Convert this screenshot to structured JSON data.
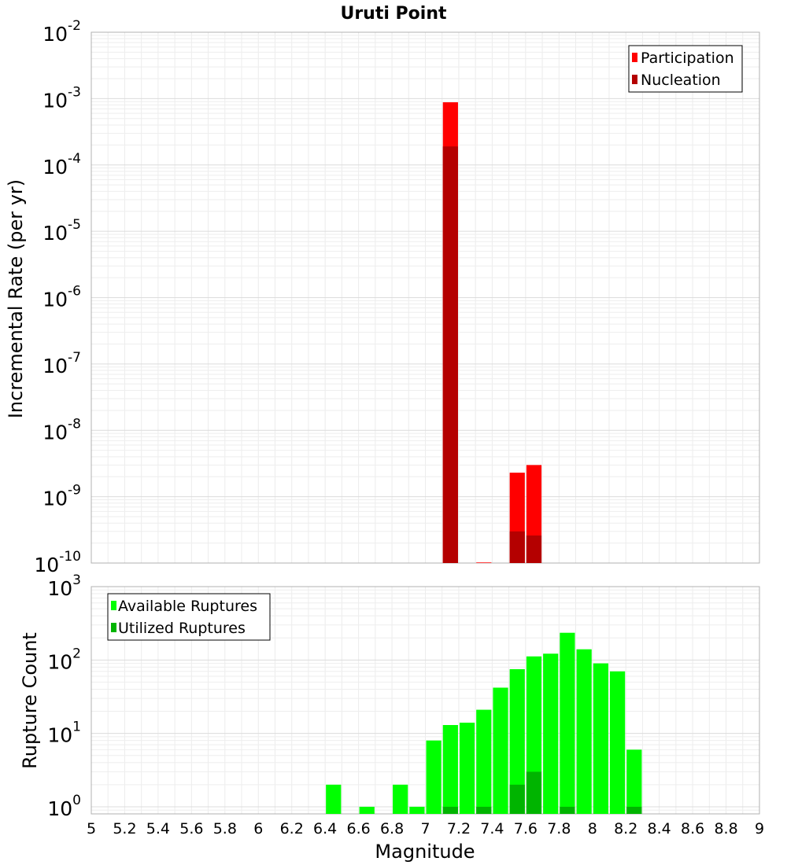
{
  "chart_data": [
    {
      "type": "bar",
      "title": "Uruti Point",
      "ylabel": "Incremental Rate (per yr)",
      "xlabel": "",
      "y_scale": "log",
      "ylim": [
        1e-10,
        0.01
      ],
      "y_ticks": [
        {
          "base": "10",
          "exp": "-10",
          "value": 1e-10
        },
        {
          "base": "10",
          "exp": "-9",
          "value": 1e-09
        },
        {
          "base": "10",
          "exp": "-8",
          "value": 1e-08
        },
        {
          "base": "10",
          "exp": "-7",
          "value": 1e-07
        },
        {
          "base": "10",
          "exp": "-6",
          "value": 1e-06
        },
        {
          "base": "10",
          "exp": "-5",
          "value": 1e-05
        },
        {
          "base": "10",
          "exp": "-4",
          "value": 0.0001
        },
        {
          "base": "10",
          "exp": "-3",
          "value": 0.001
        },
        {
          "base": "10",
          "exp": "-2",
          "value": 0.01
        }
      ],
      "xlim": [
        5,
        9
      ],
      "bin_width": 0.1,
      "grid": true,
      "legend_position": "top-right",
      "series": [
        {
          "name": "Participation",
          "color": "#ff0000",
          "x": [
            7.15,
            7.35,
            7.55,
            7.65
          ],
          "values": [
            0.00088,
            1.02e-10,
            2.3e-09,
            3e-09
          ]
        },
        {
          "name": "Nucleation",
          "color": "#b40000",
          "x": [
            7.15,
            7.55,
            7.65
          ],
          "values": [
            0.00019,
            3e-10,
            2.6e-10
          ]
        }
      ]
    },
    {
      "type": "bar",
      "title": "",
      "ylabel": "Rupture Count",
      "xlabel": "Magnitude",
      "y_scale": "log",
      "ylim": [
        0.8,
        1000
      ],
      "y_ticks": [
        {
          "base": "10",
          "exp": "0",
          "value": 1
        },
        {
          "base": "10",
          "exp": "1",
          "value": 10
        },
        {
          "base": "10",
          "exp": "2",
          "value": 100
        },
        {
          "base": "10",
          "exp": "3",
          "value": 1000
        }
      ],
      "xlim": [
        5,
        9
      ],
      "x_ticks": [
        "5",
        "5.2",
        "5.4",
        "5.6",
        "5.8",
        "6",
        "6.2",
        "6.4",
        "6.6",
        "6.8",
        "7",
        "7.2",
        "7.4",
        "7.6",
        "7.8",
        "8",
        "8.2",
        "8.4",
        "8.6",
        "8.8",
        "9"
      ],
      "bin_width": 0.1,
      "grid": true,
      "legend_position": "top-left",
      "series": [
        {
          "name": "Available Ruptures",
          "color": "#00ff00",
          "x": [
            6.45,
            6.65,
            6.85,
            6.95,
            7.05,
            7.15,
            7.25,
            7.35,
            7.45,
            7.55,
            7.65,
            7.75,
            7.85,
            7.95,
            8.05,
            8.15,
            8.25
          ],
          "values": [
            2,
            1,
            2,
            1,
            8,
            13,
            14,
            21,
            42,
            75,
            112,
            122,
            235,
            140,
            90,
            70,
            6
          ]
        },
        {
          "name": "Utilized Ruptures",
          "color": "#00b400",
          "x": [
            7.15,
            7.35,
            7.55,
            7.65,
            7.85,
            8.25
          ],
          "values": [
            1,
            1,
            2,
            3,
            1,
            1
          ]
        }
      ]
    }
  ]
}
